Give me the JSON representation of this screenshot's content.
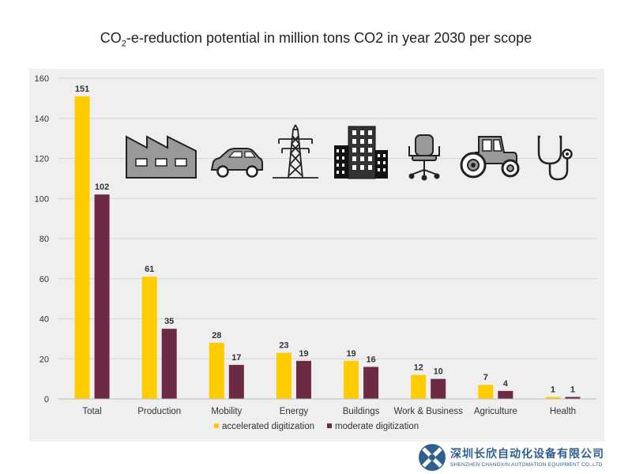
{
  "title": {
    "prefix": "CO",
    "sub": "2",
    "rest": "-e-reduction potential in million tons CO2 in year 2030 per scope"
  },
  "chart_data": {
    "type": "bar",
    "title": "CO2-e-reduction potential in million tons CO2 in year 2030 per scope",
    "xlabel": "",
    "ylabel": "",
    "categories": [
      "Total",
      "Production",
      "Mobility",
      "Energy",
      "Buildings",
      "Work & Business",
      "Agriculture",
      "Health"
    ],
    "series": [
      {
        "name": "accelerated digitization",
        "color": "#ffcc00",
        "values": [
          151,
          61,
          28,
          23,
          19,
          12,
          7,
          1
        ]
      },
      {
        "name": "moderate digitization",
        "color": "#6d2a45",
        "values": [
          102,
          35,
          17,
          19,
          16,
          10,
          4,
          1
        ]
      }
    ],
    "ylim": [
      0,
      160
    ],
    "yticks": [
      0,
      20,
      40,
      60,
      80,
      100,
      120,
      140,
      160
    ],
    "grid": true,
    "legend": "bottom"
  },
  "icons": [
    "factory-icon",
    "car-icon",
    "power-tower-icon",
    "buildings-icon",
    "office-chair-icon",
    "tractor-icon",
    "stethoscope-icon"
  ],
  "watermark": {
    "name": "深圳长欣自动化设备有限公司",
    "sub": "SHENZHEN CHANGXIN AUTOMATION EQUIPMENT CO.,LTD"
  }
}
